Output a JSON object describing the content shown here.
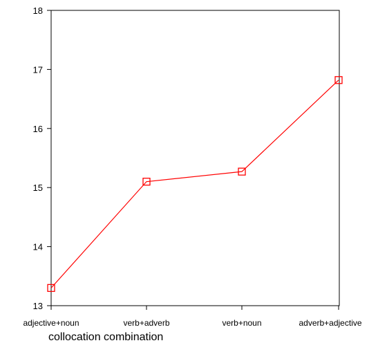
{
  "chart_data": {
    "type": "line",
    "title": "",
    "xlabel": "collocation combination",
    "ylabel": "",
    "categories": [
      "adjective+noun",
      "verb+adverb",
      "verb+noun",
      "adverb+adjective"
    ],
    "series": [
      {
        "values": [
          13.3,
          15.1,
          15.27,
          16.82
        ],
        "color": "#ff0000",
        "marker": "open-square"
      }
    ],
    "ylim": [
      13,
      18
    ],
    "yticks": [
      13,
      14,
      15,
      16,
      17,
      18
    ],
    "grid": false,
    "legend": "none"
  }
}
